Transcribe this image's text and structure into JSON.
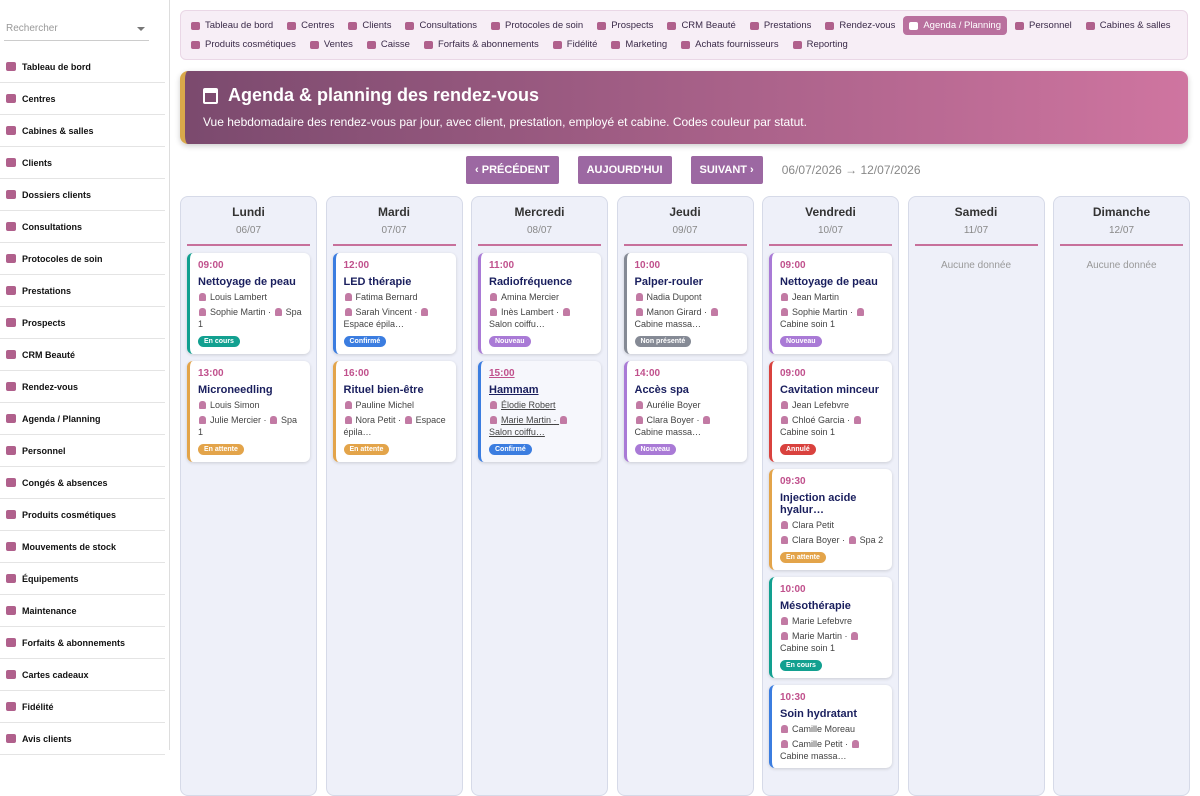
{
  "sidebar": {
    "search_placeholder": "Rechercher",
    "items": [
      "Tableau de bord",
      "Centres",
      "Cabines & salles",
      "Clients",
      "Dossiers clients",
      "Consultations",
      "Protocoles de soin",
      "Prestations",
      "Prospects",
      "CRM Beauté",
      "Rendez-vous",
      "Agenda / Planning",
      "Personnel",
      "Congés & absences",
      "Produits cosmétiques",
      "Mouvements de stock",
      "Équipements",
      "Maintenance",
      "Forfaits & abonnements",
      "Cartes cadeaux",
      "Fidélité",
      "Avis clients"
    ]
  },
  "topnav": {
    "active": "Agenda / Planning",
    "items": [
      "Tableau de bord",
      "Centres",
      "Clients",
      "Consultations",
      "Protocoles de soin",
      "Prospects",
      "CRM Beauté",
      "Prestations",
      "Rendez-vous",
      "Agenda / Planning",
      "Personnel",
      "Cabines & salles",
      "Produits cosmétiques",
      "Ventes",
      "Caisse",
      "Forfaits & abonnements",
      "Fidélité",
      "Marketing",
      "Achats fournisseurs",
      "Reporting"
    ]
  },
  "header": {
    "title": "Agenda & planning des rendez-vous",
    "subtitle": "Vue hebdomadaire des rendez-vous par jour, avec client, prestation, employé et cabine. Codes couleur par statut."
  },
  "controls": {
    "previous": "PRÉCÉDENT",
    "today": "AUJOURD'HUI",
    "next": "SUIVANT",
    "range": "06/07/2026 → 12/07/2026"
  },
  "separator": "·",
  "days": [
    {
      "name": "Lundi",
      "date": "06/07",
      "events": [
        {
          "time": "09:00",
          "title": "Nettoyage de peau",
          "client": "Louis Lambert",
          "employee": "Sophie Martin",
          "room": "Spa 1",
          "status": "En cours",
          "color": "#12a090"
        },
        {
          "time": "13:00",
          "title": "Microneedling",
          "client": "Louis Simon",
          "employee": "Julie Mercier",
          "room": "Spa 1",
          "status": "En attente",
          "color": "#e3a44a"
        }
      ]
    },
    {
      "name": "Mardi",
      "date": "07/07",
      "events": [
        {
          "time": "12:00",
          "title": "LED thérapie",
          "client": "Fatima Bernard",
          "employee": "Sarah Vincent",
          "room": "Espace épila…",
          "status": "Confirmé",
          "color": "#3b7de0"
        },
        {
          "time": "16:00",
          "title": "Rituel bien-être",
          "client": "Pauline Michel",
          "employee": "Nora Petit",
          "room": "Espace épila…",
          "status": "En attente",
          "color": "#e3a44a"
        }
      ]
    },
    {
      "name": "Mercredi",
      "date": "08/07",
      "events": [
        {
          "time": "11:00",
          "title": "Radiofréquence",
          "client": "Amina Mercier",
          "employee": "Inès Lambert",
          "room": "Salon coiffu…",
          "status": "Nouveau",
          "color": "#a97ad6"
        },
        {
          "time": "15:00",
          "title": "Hammam",
          "client": "Élodie Robert",
          "employee": "Marie Martin",
          "room": "Salon coiffu…",
          "status": "Confirmé",
          "color": "#3b7de0"
        }
      ]
    },
    {
      "name": "Jeudi",
      "date": "09/07",
      "events": [
        {
          "time": "10:00",
          "title": "Palper-rouler",
          "client": "Nadia Dupont",
          "employee": "Manon Girard",
          "room": "Cabine massa…",
          "status": "Non présenté",
          "color": "#858a95"
        },
        {
          "time": "14:00",
          "title": "Accès spa",
          "client": "Aurélie Boyer",
          "employee": "Clara Boyer",
          "room": "Cabine massa…",
          "status": "Nouveau",
          "color": "#a97ad6"
        }
      ]
    },
    {
      "name": "Vendredi",
      "date": "10/07",
      "events": [
        {
          "time": "09:00",
          "title": "Nettoyage de peau",
          "client": "Jean Martin",
          "employee": "Sophie Martin",
          "room": "Cabine soin 1",
          "status": "Nouveau",
          "color": "#a97ad6"
        },
        {
          "time": "09:00",
          "title": "Cavitation minceur",
          "client": "Jean Lefebvre",
          "employee": "Chloé Garcia",
          "room": "Cabine soin 1",
          "status": "Annulé",
          "color": "#d9423e"
        },
        {
          "time": "09:30",
          "title": "Injection acide hyalur…",
          "client": "Clara Petit",
          "employee": "Clara Boyer",
          "room": "Spa 2",
          "status": "En attente",
          "color": "#e3a44a"
        },
        {
          "time": "10:00",
          "title": "Mésothérapie",
          "client": "Marie Lefebvre",
          "employee": "Marie Martin",
          "room": "Cabine soin 1",
          "status": "En cours",
          "color": "#12a090"
        },
        {
          "time": "10:30",
          "title": "Soin hydratant",
          "client": "Camille Moreau",
          "employee": "Camille Petit",
          "room": "Cabine massa…",
          "color": "#3b7de0"
        }
      ]
    },
    {
      "name": "Samedi",
      "date": "11/07",
      "empty": "Aucune donnée",
      "events": []
    },
    {
      "name": "Dimanche",
      "date": "12/07",
      "empty": "Aucune donnée",
      "events": []
    }
  ]
}
